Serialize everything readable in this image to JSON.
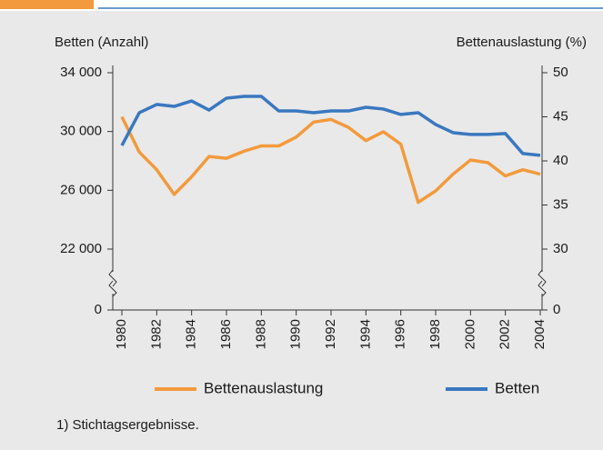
{
  "chart_data": {
    "type": "line",
    "y_label": "Betten (Anzahl)",
    "y2_label": "Bettenauslastung (%)",
    "footnote": "1) Stichtagsergebnisse.",
    "x": [
      1980,
      1981,
      1982,
      1983,
      1984,
      1985,
      1986,
      1987,
      1988,
      1989,
      1990,
      1991,
      1992,
      1993,
      1994,
      1995,
      1996,
      1997,
      1998,
      1999,
      2000,
      2001,
      2002,
      2003,
      2004
    ],
    "xlim": [
      1980,
      2004
    ],
    "xticks": [
      1980,
      1982,
      1984,
      1986,
      1988,
      1990,
      1992,
      1994,
      1996,
      1998,
      2000,
      2002,
      2004
    ],
    "ylim": [
      22000,
      34000
    ],
    "yticks": [
      {
        "value": 0,
        "label": "0"
      },
      {
        "value": 22000,
        "label": "22 000"
      },
      {
        "value": 26000,
        "label": "26 000"
      },
      {
        "value": 30000,
        "label": "30 000"
      },
      {
        "value": 34000,
        "label": "34 000"
      }
    ],
    "y2lim": [
      30,
      50
    ],
    "y2ticks": [
      0,
      30,
      35,
      40,
      45,
      50
    ],
    "axis_break": true,
    "series": [
      {
        "name": "Bettenauslastung",
        "color": "#f39a3c",
        "axis": "y2",
        "values": [
          45,
          41,
          39,
          36.2,
          38.2,
          40.5,
          40.3,
          41.1,
          41.7,
          41.7,
          42.7,
          44.4,
          44.7,
          43.8,
          42.3,
          43.3,
          41.9,
          35.3,
          36.6,
          38.5,
          40.1,
          39.8,
          38.3,
          39,
          38.5
        ]
      },
      {
        "name": "Betten",
        "color": "#3a78bf",
        "values": [
          29050,
          31280,
          31840,
          31710,
          32080,
          31460,
          32270,
          32390,
          32390,
          31400,
          31400,
          31280,
          31400,
          31400,
          31650,
          31530,
          31160,
          31280,
          30480,
          29920,
          29800,
          29800,
          29860,
          28500,
          28380
        ]
      }
    ]
  }
}
